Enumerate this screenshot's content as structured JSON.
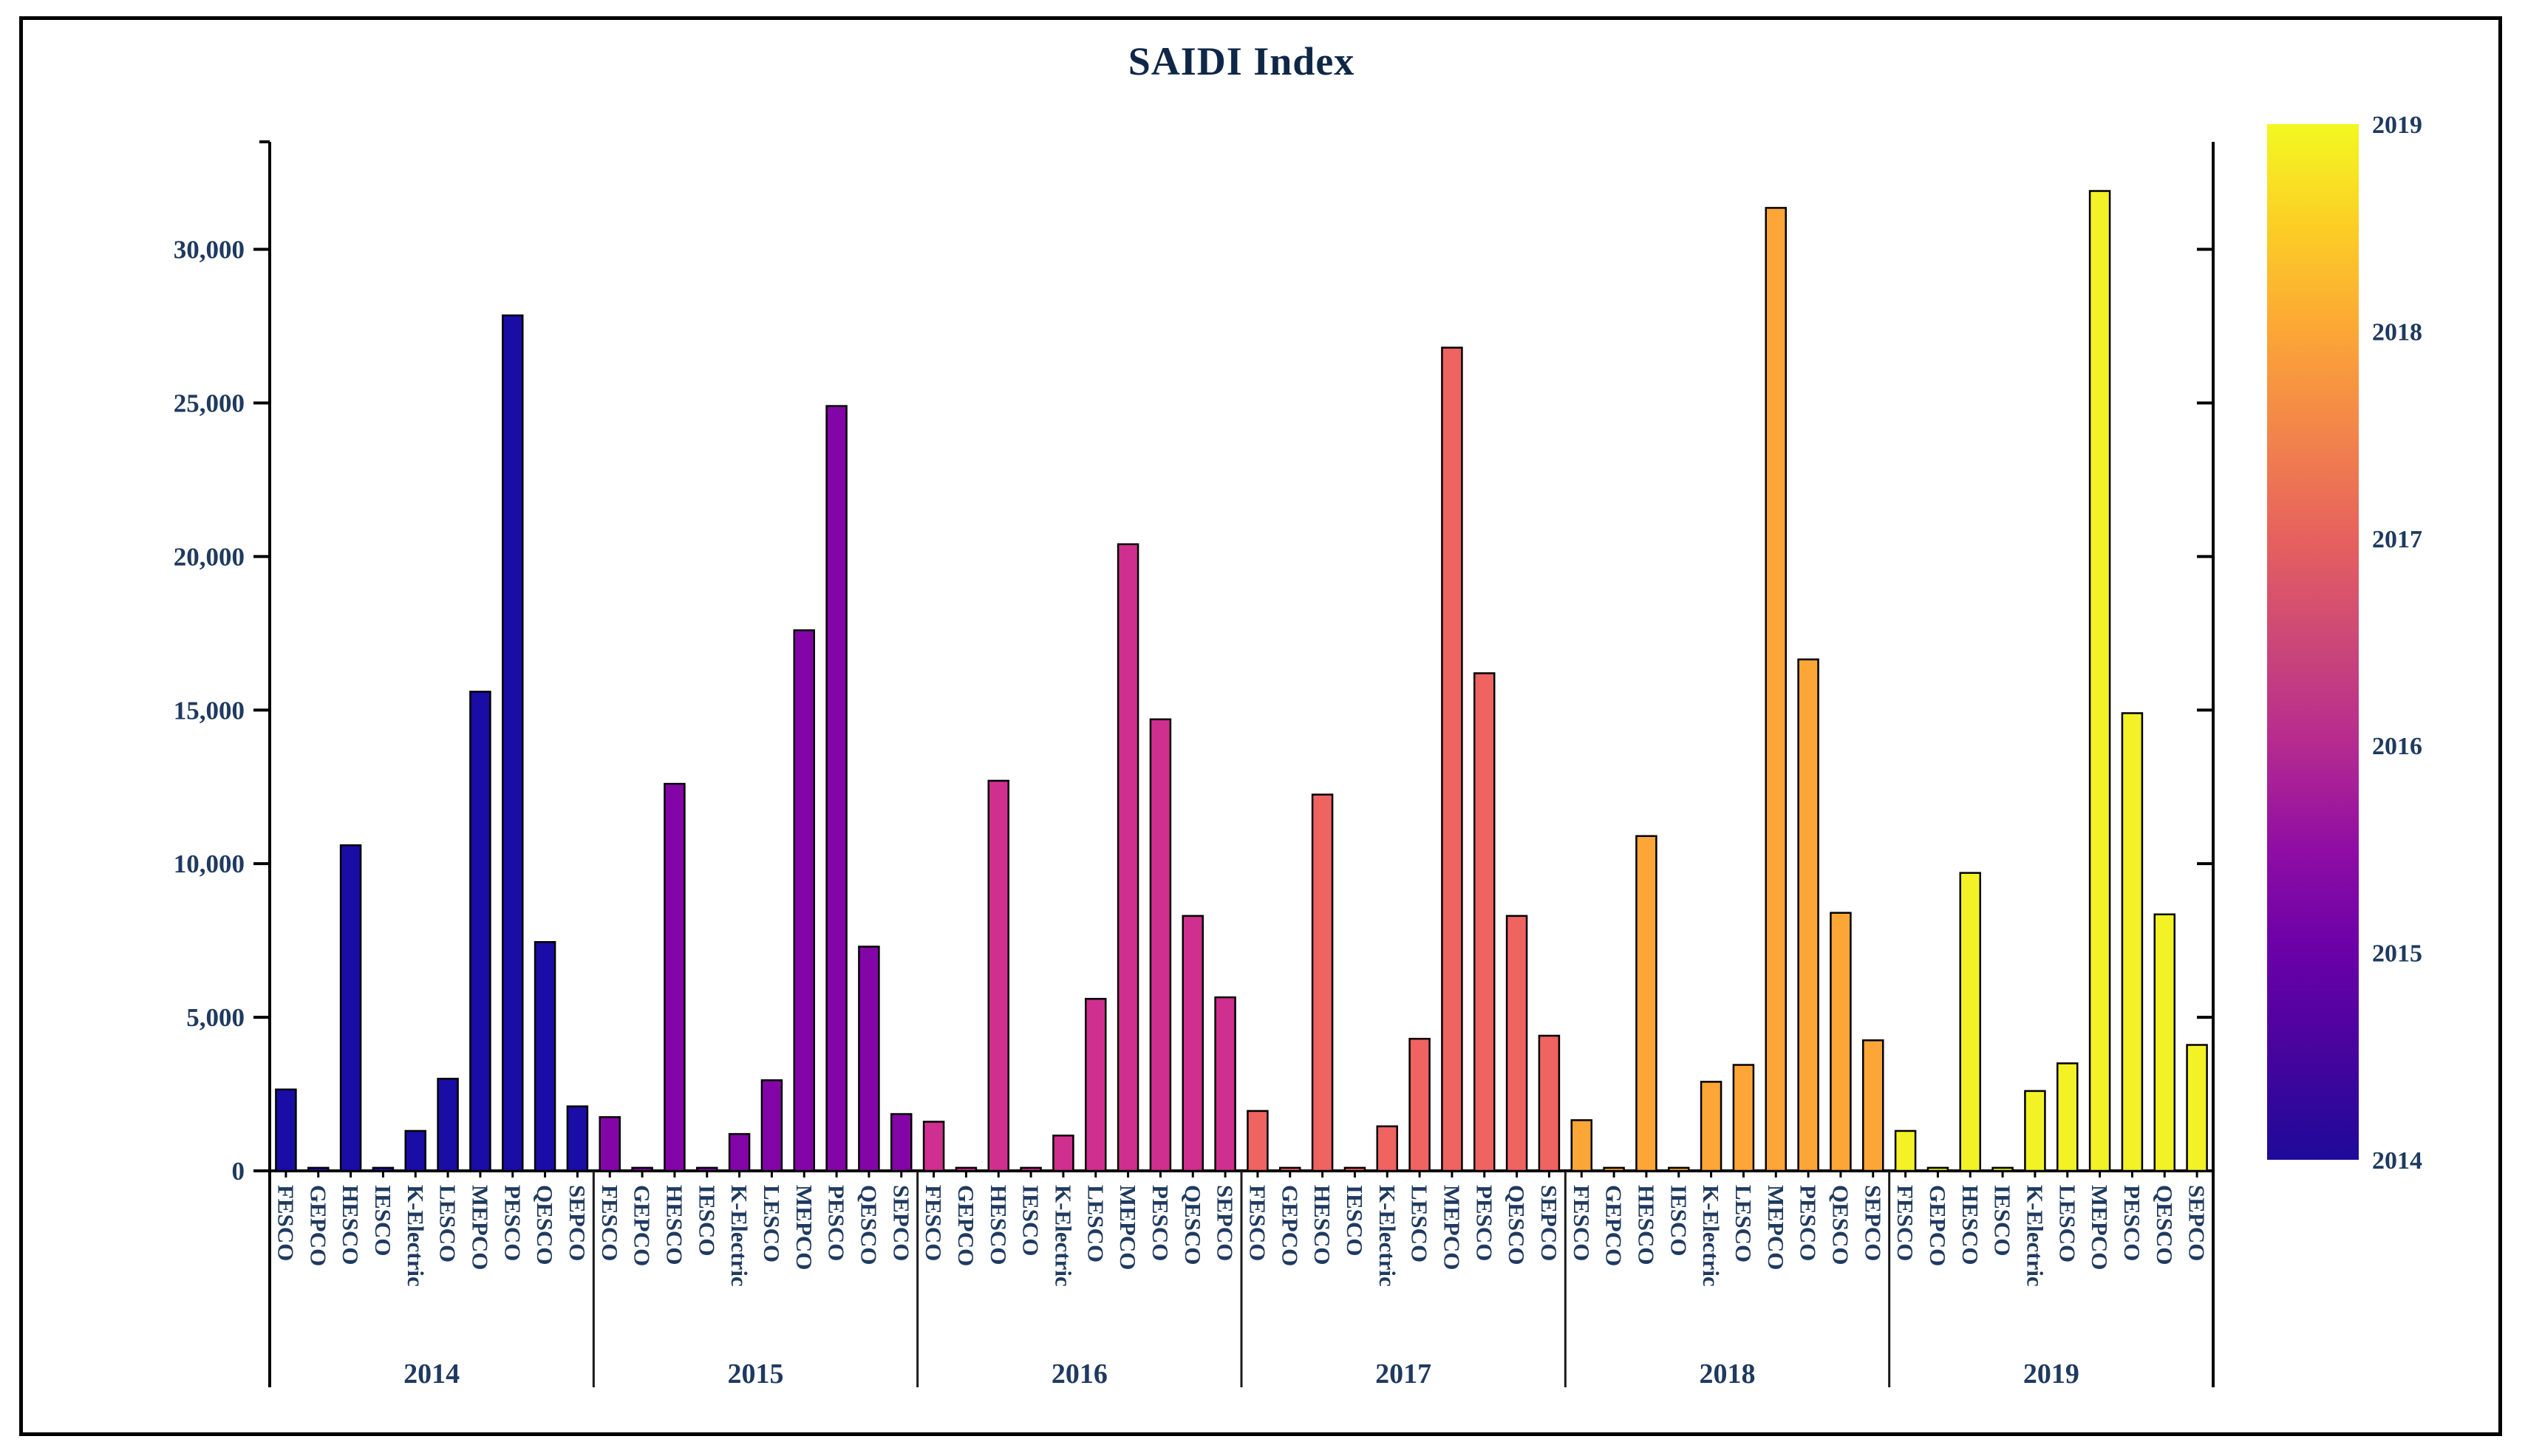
{
  "title": "SAIDI Index",
  "text_color": "#1f3a60",
  "title_color": "#0f2747",
  "axis_color": "#000000",
  "chart_data": {
    "type": "bar",
    "title": "SAIDI Index",
    "xlabel": "",
    "ylabel": "",
    "ylim": [
      0,
      33500
    ],
    "grid": false,
    "categories": [
      "FESCO",
      "GEPCO",
      "HESCO",
      "IESCO",
      "K-Electric",
      "LESCO",
      "MEPCO",
      "PESCO",
      "QESCO",
      "SEPCO"
    ],
    "yticks": [
      0,
      5000,
      10000,
      15000,
      20000,
      25000,
      30000
    ],
    "ytick_labels": [
      "0",
      "5,000",
      "10,000",
      "15,000",
      "20,000",
      "25,000",
      "30,000"
    ],
    "series": [
      {
        "name": "2014",
        "color": "#1a0da5",
        "values": [
          2650,
          100,
          10600,
          100,
          1300,
          3000,
          15600,
          27850,
          7450,
          2100
        ]
      },
      {
        "name": "2015",
        "color": "#8405a7",
        "values": [
          1750,
          100,
          12600,
          100,
          1200,
          2950,
          17600,
          24900,
          7300,
          1850
        ]
      },
      {
        "name": "2016",
        "color": "#cf2f8e",
        "values": [
          1600,
          100,
          12700,
          100,
          1150,
          5600,
          20400,
          14700,
          8300,
          5650
        ]
      },
      {
        "name": "2017",
        "color": "#ef6360",
        "values": [
          1950,
          100,
          12250,
          100,
          1450,
          4300,
          26800,
          16200,
          8300,
          4400
        ]
      },
      {
        "name": "2018",
        "color": "#fba636",
        "values": [
          1650,
          100,
          10900,
          100,
          2900,
          3450,
          31350,
          16650,
          8400,
          4250
        ]
      },
      {
        "name": "2019",
        "color": "#f2f226",
        "values": [
          1300,
          100,
          9700,
          100,
          2600,
          3500,
          31900,
          14900,
          8350,
          4100
        ]
      }
    ],
    "colorbar": {
      "labels_top_to_bottom": [
        "2019",
        "2018",
        "2017",
        "2016",
        "2015",
        "2014"
      ],
      "gradient_bottom_to_top": [
        {
          "offset": 0.0,
          "color": "#1e0a99"
        },
        {
          "offset": 0.1,
          "color": "#46049d"
        },
        {
          "offset": 0.2,
          "color": "#6a00a8"
        },
        {
          "offset": 0.3,
          "color": "#8f0da4"
        },
        {
          "offset": 0.4,
          "color": "#b52a90"
        },
        {
          "offset": 0.5,
          "color": "#cc4778"
        },
        {
          "offset": 0.6,
          "color": "#e6615e"
        },
        {
          "offset": 0.7,
          "color": "#f2844b"
        },
        {
          "offset": 0.8,
          "color": "#fca636"
        },
        {
          "offset": 0.9,
          "color": "#fcce25"
        },
        {
          "offset": 1.0,
          "color": "#f3f821"
        }
      ]
    }
  }
}
